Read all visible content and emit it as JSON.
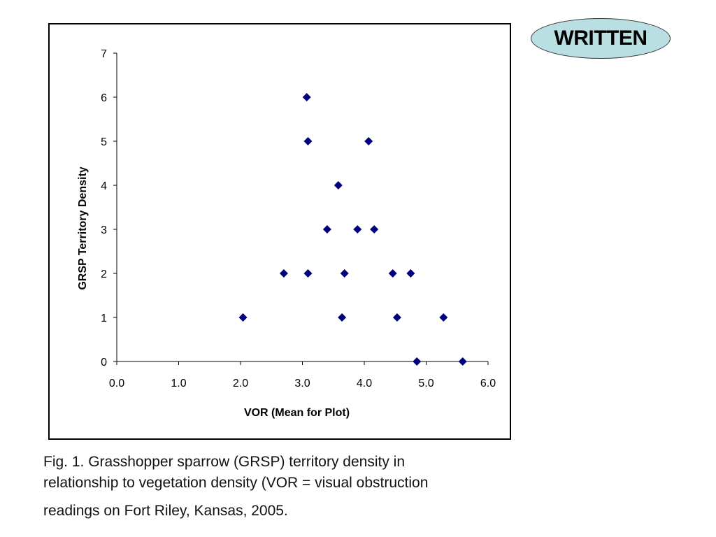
{
  "badge": {
    "label": "WRITTEN",
    "color": "#b9dfe2"
  },
  "caption": {
    "line1": "Fig. 1. Grasshopper sparrow (GRSP) territory density in",
    "line2": "relationship to vegetation density (VOR = visual obstruction",
    "line3": "readings on Fort Riley, Kansas, 2005."
  },
  "chart_data": {
    "type": "scatter",
    "title": "",
    "xlabel": "VOR (Mean for Plot)",
    "ylabel": "GRSP Territory Density",
    "xlim": [
      0,
      6
    ],
    "ylim": [
      0,
      7
    ],
    "x_ticks": [
      "0.0",
      "1.0",
      "2.0",
      "3.0",
      "4.0",
      "5.0",
      "6.0"
    ],
    "y_ticks": [
      "0",
      "1",
      "2",
      "3",
      "4",
      "5",
      "6",
      "7"
    ],
    "grid": false,
    "legend": "none",
    "marker": "diamond",
    "marker_color": "#00007f",
    "series": [
      {
        "points": [
          {
            "x": 3.07,
            "y": 6
          },
          {
            "x": 3.09,
            "y": 5
          },
          {
            "x": 4.07,
            "y": 5
          },
          {
            "x": 3.58,
            "y": 4
          },
          {
            "x": 3.4,
            "y": 3
          },
          {
            "x": 3.89,
            "y": 3
          },
          {
            "x": 4.16,
            "y": 3
          },
          {
            "x": 2.7,
            "y": 2
          },
          {
            "x": 3.09,
            "y": 2
          },
          {
            "x": 3.68,
            "y": 2
          },
          {
            "x": 4.46,
            "y": 2
          },
          {
            "x": 4.75,
            "y": 2
          },
          {
            "x": 2.04,
            "y": 1
          },
          {
            "x": 3.64,
            "y": 1
          },
          {
            "x": 4.53,
            "y": 1
          },
          {
            "x": 5.28,
            "y": 1
          },
          {
            "x": 4.85,
            "y": 0
          },
          {
            "x": 5.59,
            "y": 0
          }
        ]
      }
    ]
  }
}
